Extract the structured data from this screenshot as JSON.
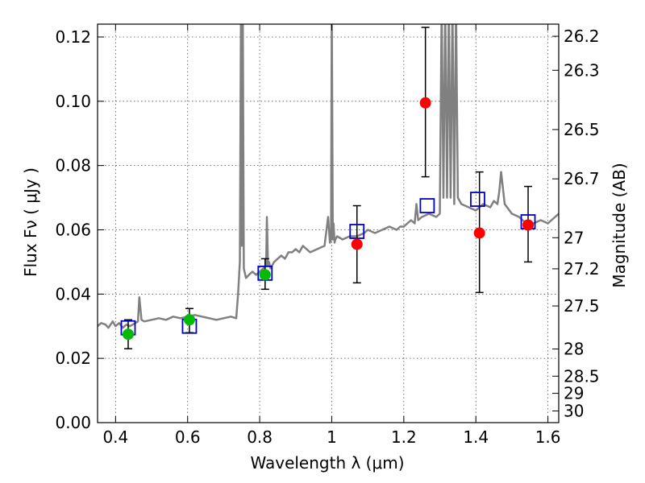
{
  "chart_data": {
    "type": "scatter",
    "xlabel": "Wavelength  λ (μm)",
    "ylabel": "Flux  Fν  ( μJy )",
    "y2label": "Magnitude (AB)",
    "xlim": [
      0.35,
      1.63
    ],
    "ylim": [
      0.0,
      0.124
    ],
    "xticks": [
      0.4,
      0.6,
      0.8,
      1.0,
      1.2,
      1.4,
      1.6
    ],
    "xtick_labels": [
      "0.4",
      "0.6",
      "0.8",
      "1",
      "1.2",
      "1.4",
      "1.6"
    ],
    "yticks": [
      0.0,
      0.02,
      0.04,
      0.06,
      0.08,
      0.1,
      0.12
    ],
    "ytick_labels": [
      "0.00",
      "0.02",
      "0.04",
      "0.06",
      "0.08",
      "0.10",
      "0.12"
    ],
    "mag_ticks": [
      "26.2",
      "26.3",
      "26.5",
      "26.7",
      "27",
      "27.2",
      "27.5",
      "28",
      "28.5",
      "29",
      "30"
    ],
    "grid": true,
    "colors": {
      "spectrum": "#808080",
      "model_box": "#0000cc",
      "green_points": "#00bb00",
      "red_points": "#ff0000",
      "errorbar": "#000000"
    },
    "spectrum": {
      "x": [
        0.35,
        0.36,
        0.372,
        0.38,
        0.392,
        0.4,
        0.41,
        0.42,
        0.43,
        0.44,
        0.455,
        0.462,
        0.466,
        0.472,
        0.48,
        0.5,
        0.52,
        0.54,
        0.56,
        0.58,
        0.6,
        0.62,
        0.64,
        0.66,
        0.68,
        0.7,
        0.72,
        0.735,
        0.74,
        0.745,
        0.748,
        0.75,
        0.753,
        0.756,
        0.762,
        0.77,
        0.78,
        0.79,
        0.8,
        0.81,
        0.818,
        0.82,
        0.823,
        0.826,
        0.83,
        0.84,
        0.85,
        0.86,
        0.87,
        0.88,
        0.89,
        0.9,
        0.91,
        0.92,
        0.94,
        0.96,
        0.98,
        0.99,
        0.995,
        0.998,
        1.0,
        1.003,
        1.005,
        1.008,
        1.01,
        1.015,
        1.03,
        1.05,
        1.07,
        1.09,
        1.1,
        1.12,
        1.14,
        1.16,
        1.18,
        1.19,
        1.2,
        1.22,
        1.23,
        1.235,
        1.24,
        1.25,
        1.27,
        1.29,
        1.3,
        1.305,
        1.31,
        1.315,
        1.32,
        1.325,
        1.33,
        1.335,
        1.34,
        1.345,
        1.35,
        1.36,
        1.38,
        1.4,
        1.42,
        1.44,
        1.45,
        1.46,
        1.465,
        1.47,
        1.48,
        1.5,
        1.52,
        1.54,
        1.56,
        1.58,
        1.6,
        1.62,
        1.63
      ],
      "y": [
        0.03,
        0.031,
        0.0305,
        0.0295,
        0.0315,
        0.03,
        0.031,
        0.0295,
        0.0305,
        0.03,
        0.031,
        0.0315,
        0.039,
        0.032,
        0.0315,
        0.032,
        0.0325,
        0.032,
        0.033,
        0.0325,
        0.033,
        0.0335,
        0.033,
        0.0325,
        0.032,
        0.0325,
        0.033,
        0.0325,
        0.04,
        0.05,
        0.13,
        0.055,
        0.13,
        0.048,
        0.045,
        0.046,
        0.047,
        0.046,
        0.047,
        0.048,
        0.049,
        0.064,
        0.049,
        0.05,
        0.048,
        0.05,
        0.051,
        0.052,
        0.051,
        0.053,
        0.053,
        0.054,
        0.053,
        0.055,
        0.053,
        0.054,
        0.055,
        0.064,
        0.056,
        0.057,
        0.13,
        0.057,
        0.062,
        0.056,
        0.057,
        0.058,
        0.057,
        0.058,
        0.058,
        0.059,
        0.06,
        0.059,
        0.06,
        0.061,
        0.06,
        0.061,
        0.061,
        0.063,
        0.062,
        0.068,
        0.063,
        0.064,
        0.065,
        0.064,
        0.065,
        0.13,
        0.07,
        0.13,
        0.07,
        0.13,
        0.07,
        0.13,
        0.068,
        0.13,
        0.07,
        0.068,
        0.067,
        0.066,
        0.068,
        0.067,
        0.069,
        0.068,
        0.072,
        0.078,
        0.068,
        0.065,
        0.064,
        0.062,
        0.062,
        0.063,
        0.062,
        0.064,
        0.065
      ]
    },
    "model_boxes": {
      "x": [
        0.435,
        0.605,
        0.815,
        1.07,
        1.265,
        1.405,
        1.545
      ],
      "y": [
        0.0295,
        0.03,
        0.0465,
        0.0595,
        0.0675,
        0.0695,
        0.0625
      ]
    },
    "green_points": {
      "x": [
        0.435,
        0.605,
        0.815
      ],
      "y": [
        0.0275,
        0.032,
        0.046
      ],
      "err_low": [
        0.023,
        0.028,
        0.0415
      ],
      "err_high": [
        0.032,
        0.0355,
        0.051
      ]
    },
    "red_points": {
      "x": [
        1.07,
        1.26,
        1.41,
        1.545
      ],
      "y": [
        0.0555,
        0.0995,
        0.059,
        0.0615
      ],
      "err_low": [
        0.0435,
        0.0765,
        0.0405,
        0.05
      ],
      "err_high": [
        0.0675,
        0.123,
        0.078,
        0.0735
      ]
    }
  }
}
